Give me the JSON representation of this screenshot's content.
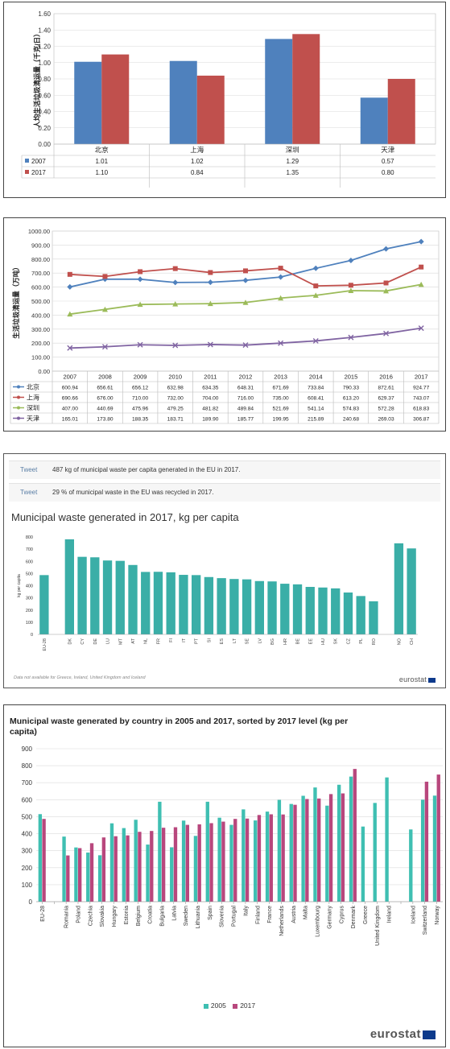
{
  "chart_data": [
    {
      "type": "bar",
      "ylabel": "人均生活垃圾清运量（千克/日）",
      "categories": [
        "北京",
        "上海",
        "深圳",
        "天津"
      ],
      "ylim": [
        0,
        1.6
      ],
      "yticks": [
        "0.00",
        "0.20",
        "0.40",
        "0.60",
        "0.80",
        "1.00",
        "1.20",
        "1.40",
        "1.60"
      ],
      "grid": true,
      "series": [
        {
          "name": "2007",
          "color": "#4f81bd",
          "values": [
            1.01,
            1.02,
            1.29,
            0.57
          ],
          "labels": [
            "1.01",
            "1.02",
            "1.29",
            "0.57"
          ]
        },
        {
          "name": "2017",
          "color": "#c0504d",
          "values": [
            1.1,
            0.84,
            1.35,
            0.8
          ],
          "labels": [
            "1.10",
            "0.84",
            "1.35",
            "0.80"
          ]
        }
      ]
    },
    {
      "type": "line",
      "ylabel": "生活垃圾清运量（万吨）",
      "categories": [
        "2007",
        "2008",
        "2009",
        "2010",
        "2011",
        "2012",
        "2013",
        "2014",
        "2015",
        "2016",
        "2017"
      ],
      "ylim": [
        0,
        1000
      ],
      "yticks": [
        "0.00",
        "100.00",
        "200.00",
        "300.00",
        "400.00",
        "500.00",
        "600.00",
        "700.00",
        "800.00",
        "900.00",
        "1000.00"
      ],
      "grid": true,
      "series": [
        {
          "name": "北京",
          "color": "#4f81bd",
          "values": [
            600.94,
            656.61,
            656.12,
            632.98,
            634.35,
            648.31,
            671.69,
            733.84,
            790.33,
            872.61,
            924.77
          ],
          "labels": [
            "600.94",
            "656.61",
            "656.12",
            "632.98",
            "634.35",
            "648.31",
            "671.69",
            "733.84",
            "790.33",
            "872.61",
            "924.77"
          ]
        },
        {
          "name": "上海",
          "color": "#c0504d",
          "values": [
            690.66,
            676.0,
            710.0,
            732.0,
            704.0,
            716.0,
            735.0,
            608.41,
            613.2,
            629.37,
            743.07
          ],
          "labels": [
            "690.66",
            "676.00",
            "710.00",
            "732.00",
            "704.00",
            "716.00",
            "735.00",
            "608.41",
            "613.20",
            "629.37",
            "743.07"
          ]
        },
        {
          "name": "深圳",
          "color": "#9bbb59",
          "values": [
            407.0,
            440.69,
            475.96,
            479.25,
            481.82,
            489.84,
            521.69,
            541.14,
            574.83,
            572.28,
            618.83
          ],
          "labels": [
            "407.00",
            "440.69",
            "475.96",
            "479.25",
            "481.82",
            "489.84",
            "521.69",
            "541.14",
            "574.83",
            "572.28",
            "618.83"
          ]
        },
        {
          "name": "天津",
          "color": "#8064a2",
          "values": [
            165.01,
            173.8,
            188.35,
            183.71,
            189.9,
            185.77,
            199.95,
            215.89,
            240.68,
            269.03,
            306.87
          ],
          "labels": [
            "165.01",
            "173.80",
            "188.35",
            "183.71",
            "189.90",
            "185.77",
            "199.95",
            "215.89",
            "240.68",
            "269.03",
            "306.87"
          ]
        }
      ]
    },
    {
      "type": "bar",
      "title": "Municipal waste generated in 2017, kg per capita",
      "ylabel": "kg per capita",
      "ylim": [
        0,
        800
      ],
      "yticks": [
        "0",
        "100",
        "200",
        "300",
        "400",
        "500",
        "600",
        "700",
        "800"
      ],
      "color": "#3aaea7",
      "categories": [
        "EU-28",
        "",
        "DK",
        "CY",
        "DE",
        "LU",
        "MT",
        "AT",
        "NL",
        "FR",
        "FI",
        "IT",
        "PT",
        "SI",
        "ES",
        "LT",
        "SE",
        "LV",
        "BG",
        "HR",
        "BE",
        "EE",
        "HU",
        "SK",
        "CZ",
        "PL",
        "RO",
        "",
        "NO",
        "CH"
      ],
      "values": [
        487,
        null,
        781,
        637,
        633,
        607,
        604,
        570,
        513,
        514,
        510,
        489,
        487,
        471,
        462,
        455,
        452,
        438,
        435,
        416,
        411,
        390,
        385,
        378,
        344,
        315,
        272,
        null,
        748,
        706
      ]
    },
    {
      "type": "bar",
      "title": "Municipal waste generated by country in 2005 and 2017, sorted by 2017 level (kg per capita)",
      "ylim": [
        0,
        900
      ],
      "yticks": [
        "0",
        "100",
        "200",
        "300",
        "400",
        "500",
        "600",
        "700",
        "800",
        "900"
      ],
      "grid": true,
      "categories": [
        "EU-28",
        "",
        "Romania",
        "Poland",
        "Czechia",
        "Slovakia",
        "Hungary",
        "Estonia",
        "Belgium",
        "Croatia",
        "Bulgaria",
        "Latvia",
        "Sweden",
        "Lithuania",
        "Spain",
        "Slovenia",
        "Portugal",
        "Italy",
        "Finland",
        "France",
        "Netherlands",
        "Austria",
        "Malta",
        "Luxembourg",
        "Germany",
        "Cyprus",
        "Denmark",
        "Greece",
        "United Kingdom",
        "Ireland",
        "",
        "Iceland",
        "Switzerland",
        "Norway"
      ],
      "series": [
        {
          "name": "2005",
          "color": "#3fbfb2",
          "values": [
            515,
            null,
            383,
            319,
            289,
            273,
            461,
            433,
            482,
            336,
            588,
            320,
            477,
            387,
            588,
            494,
            452,
            543,
            478,
            530,
            599,
            575,
            623,
            672,
            565,
            688,
            736,
            442,
            581,
            731,
            null,
            425,
            600,
            624
          ]
        },
        {
          "name": "2017",
          "color": "#b8477d",
          "values": [
            487,
            null,
            272,
            315,
            344,
            378,
            385,
            390,
            411,
            416,
            435,
            438,
            452,
            455,
            462,
            471,
            487,
            489,
            510,
            514,
            513,
            570,
            604,
            607,
            633,
            637,
            781,
            null,
            null,
            null,
            null,
            null,
            706,
            748
          ]
        }
      ],
      "legend": "bottom"
    }
  ],
  "tweets": [
    {
      "label": "Tweet",
      "text": "487 kg of municipal waste per capita generated in the EU in 2017."
    },
    {
      "label": "Tweet",
      "text": "29 % of municipal waste in the EU was recycled in 2017."
    }
  ],
  "note": "Data not available for Greece, Ireland, United Kingdom and Iceland",
  "brand": "eurostat"
}
